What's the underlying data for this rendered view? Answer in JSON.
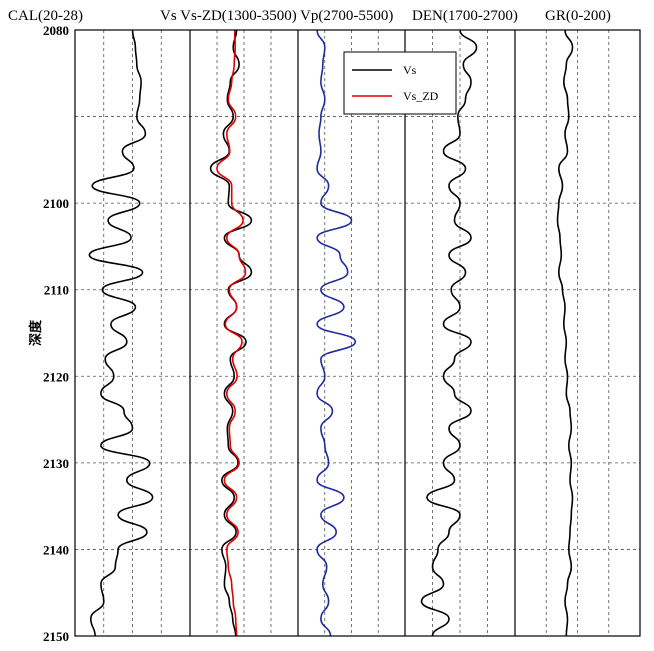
{
  "chart_data": {
    "type": "line",
    "title": "",
    "ylabel": "深度",
    "ylim": [
      2080,
      2150
    ],
    "y_invert": true,
    "y_ticks": [
      2080,
      2090,
      2100,
      2110,
      2120,
      2130,
      2140,
      2150
    ],
    "y_tick_labels": [
      "2080",
      "",
      "2100",
      "2110",
      "2120",
      "2130",
      "2140",
      "2150"
    ],
    "grid": "dashed",
    "tracks": [
      {
        "label": "CAL(20-28)",
        "range": [
          20,
          28
        ],
        "series": [
          {
            "name": "",
            "color": "#000000",
            "y": [
              2080,
              2082,
              2084,
              2086,
              2088,
              2090,
              2092,
              2094,
              2096,
              2098,
              2100,
              2102,
              2104,
              2106,
              2108,
              2110,
              2112,
              2114,
              2116,
              2118,
              2120,
              2122,
              2124,
              2126,
              2128,
              2130,
              2132,
              2134,
              2136,
              2138,
              2140,
              2142,
              2144,
              2146,
              2148,
              2150
            ],
            "x": [
              24.0,
              24.2,
              24.3,
              24.6,
              24.5,
              24.3,
              24.9,
              23.3,
              24.1,
              21.2,
              24.5,
              22.3,
              23.9,
              21.0,
              24.7,
              21.9,
              24.2,
              22.5,
              23.6,
              22.1,
              22.7,
              21.8,
              23.4,
              24.0,
              21.8,
              25.2,
              23.6,
              25.4,
              23.0,
              25.0,
              23.0,
              22.8,
              21.8,
              22.0,
              21.1,
              21.4
            ]
          }
        ]
      },
      {
        "label": "Vs Vs-ZD(1300-3500)",
        "range": [
          1300,
          3500
        ],
        "series": [
          {
            "name": "Vs",
            "color": "#000000",
            "y": [
              2080,
              2082,
              2084,
              2086,
              2088,
              2090,
              2092,
              2094,
              2096,
              2098,
              2100,
              2102,
              2104,
              2106,
              2108,
              2110,
              2112,
              2114,
              2116,
              2118,
              2120,
              2122,
              2124,
              2126,
              2128,
              2130,
              2132,
              2134,
              2136,
              2138,
              2140,
              2142,
              2144,
              2146,
              2148,
              2150
            ],
            "x": [
              2250,
              2180,
              2300,
              2120,
              2060,
              2180,
              1980,
              2100,
              1720,
              2100,
              2080,
              2550,
              2000,
              2300,
              2550,
              2080,
              2250,
              2000,
              2440,
              2120,
              2200,
              2000,
              2170,
              2060,
              2080,
              2280,
              1950,
              2200,
              2000,
              2240,
              1950,
              2030,
              2000,
              2100,
              2170,
              2230
            ]
          },
          {
            "name": "Vs_ZD",
            "color": "#e00000",
            "y": [
              2080,
              2082,
              2084,
              2086,
              2088,
              2090,
              2092,
              2094,
              2096,
              2098,
              2100,
              2102,
              2104,
              2106,
              2108,
              2110,
              2112,
              2114,
              2116,
              2118,
              2120,
              2122,
              2124,
              2126,
              2128,
              2130,
              2132,
              2134,
              2136,
              2138,
              2140,
              2142,
              2144,
              2146,
              2148,
              2150
            ],
            "x": [
              2210,
              2220,
              2200,
              2150,
              2080,
              2230,
              2050,
              2110,
              1850,
              2150,
              2150,
              2380,
              2050,
              2300,
              2430,
              2100,
              2250,
              2020,
              2360,
              2170,
              2260,
              2050,
              2220,
              2100,
              2120,
              2300,
              2000,
              2250,
              2050,
              2280,
              2050,
              2080,
              2150,
              2180,
              2230,
              2250
            ]
          }
        ]
      },
      {
        "label": "Vp(2700-5500)",
        "range": [
          2700,
          5500
        ],
        "series": [
          {
            "name": "",
            "color": "#1f2a9e",
            "y": [
              2080,
              2082,
              2084,
              2086,
              2088,
              2090,
              2092,
              2094,
              2096,
              2098,
              2100,
              2102,
              2104,
              2106,
              2108,
              2110,
              2112,
              2114,
              2116,
              2118,
              2120,
              2122,
              2124,
              2126,
              2128,
              2130,
              2132,
              2134,
              2136,
              2138,
              2140,
              2142,
              2144,
              2146,
              2148,
              2150
            ],
            "x": [
              3200,
              3400,
              3350,
              3300,
              3400,
              3300,
              3250,
              3300,
              3200,
              3500,
              3300,
              4100,
              3200,
              3800,
              4000,
              3300,
              3900,
              3200,
              4200,
              3300,
              3400,
              3200,
              3600,
              3300,
              3400,
              3500,
              3200,
              3900,
              3300,
              3700,
              3200,
              3450,
              3350,
              3500,
              3300,
              3550
            ]
          }
        ]
      },
      {
        "label": "DEN(1700-2700)",
        "range": [
          1700,
          2700
        ],
        "series": [
          {
            "name": "",
            "color": "#000000",
            "y": [
              2080,
              2082,
              2084,
              2086,
              2088,
              2090,
              2092,
              2094,
              2096,
              2098,
              2100,
              2102,
              2104,
              2106,
              2108,
              2110,
              2112,
              2114,
              2116,
              2118,
              2120,
              2122,
              2124,
              2126,
              2128,
              2130,
              2132,
              2134,
              2136,
              2138,
              2140,
              2142,
              2144,
              2146,
              2148,
              2150
            ],
            "x": [
              2200,
              2350,
              2230,
              2300,
              2250,
              2180,
              2200,
              2050,
              2250,
              2100,
              2200,
              2150,
              2300,
              2100,
              2250,
              2120,
              2200,
              2050,
              2300,
              2150,
              2050,
              2150,
              2300,
              2100,
              2200,
              2050,
              2150,
              1900,
              2200,
              2100,
              2000,
              1950,
              2050,
              1850,
              2100,
              1950
            ]
          }
        ]
      },
      {
        "label": "GR(0-200)",
        "range": [
          0,
          200
        ],
        "series": [
          {
            "name": "",
            "color": "#000000",
            "y": [
              2080,
              2082,
              2084,
              2086,
              2088,
              2090,
              2092,
              2094,
              2096,
              2098,
              2100,
              2102,
              2104,
              2106,
              2108,
              2110,
              2112,
              2114,
              2116,
              2118,
              2120,
              2122,
              2124,
              2126,
              2128,
              2130,
              2132,
              2134,
              2136,
              2138,
              2140,
              2142,
              2144,
              2146,
              2148,
              2150
            ],
            "x": [
              80,
              92,
              82,
              78,
              84,
              86,
              80,
              84,
              70,
              76,
              70,
              68,
              72,
              74,
              70,
              76,
              80,
              78,
              82,
              80,
              84,
              82,
              88,
              90,
              86,
              90,
              88,
              92,
              90,
              88,
              86,
              90,
              84,
              80,
              84,
              82
            ]
          }
        ]
      }
    ],
    "legend": {
      "placement": "top-center",
      "entries": [
        {
          "label": "Vs",
          "color": "#000000"
        },
        {
          "label": "Vs_ZD",
          "color": "#e00000"
        }
      ]
    }
  }
}
